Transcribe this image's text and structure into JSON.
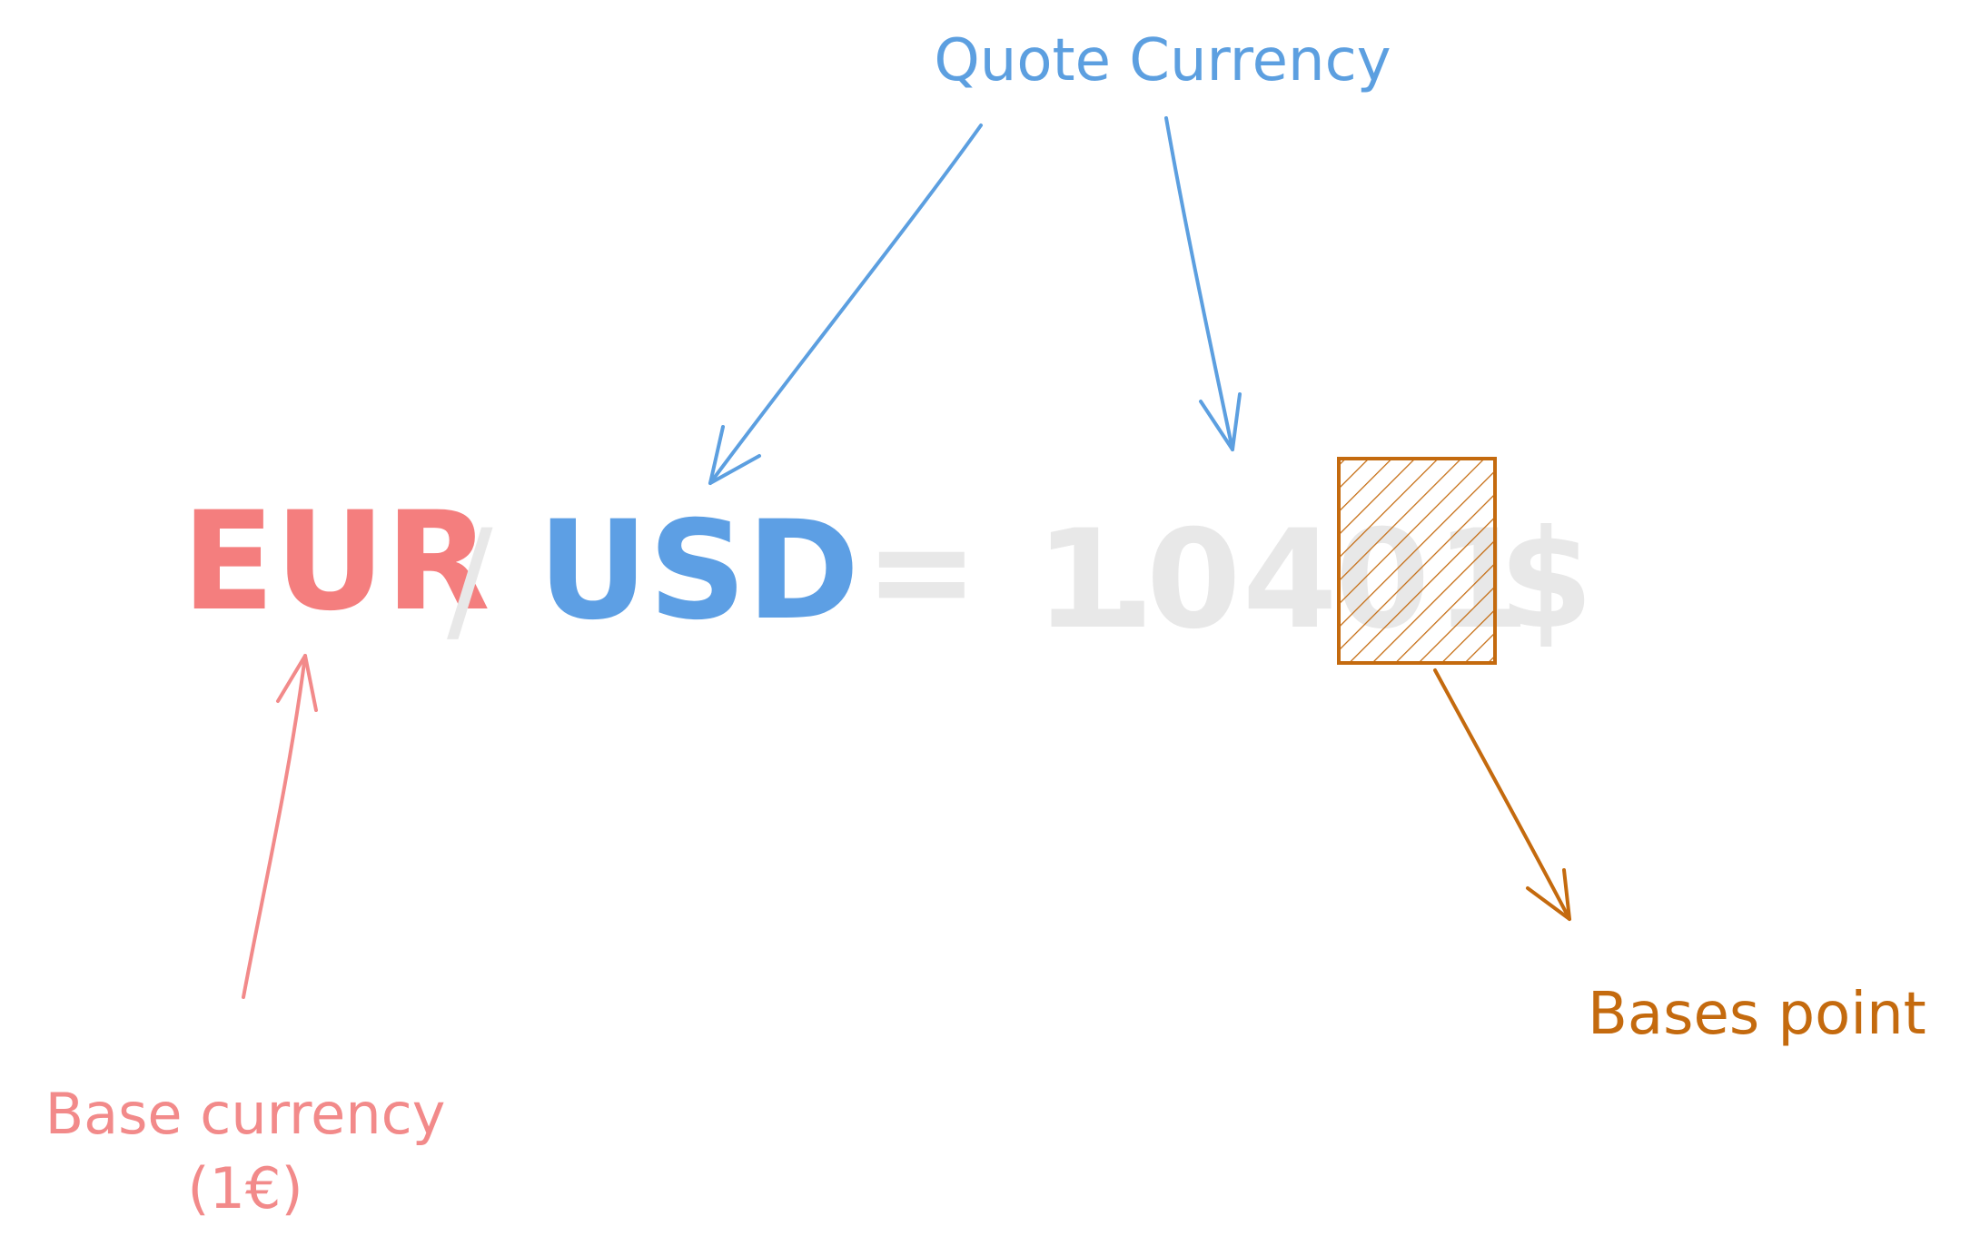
{
  "expression": {
    "base_code": "EUR",
    "slash": "/",
    "quote_code": "USD",
    "equals": "=",
    "rate_digits": [
      "1",
      ".",
      "0",
      "4",
      "0",
      "1"
    ],
    "rate_symbol": "$"
  },
  "labels": {
    "quote_currency": "Quote Currency",
    "base_currency": "Base currency",
    "base_currency_note": "(1€)",
    "bases_point": "Bases point"
  },
  "colors": {
    "base": "#f47e7e",
    "quote": "#5d9fe4",
    "rate": "#e8e8e8",
    "highlight": "#c46a0e"
  }
}
